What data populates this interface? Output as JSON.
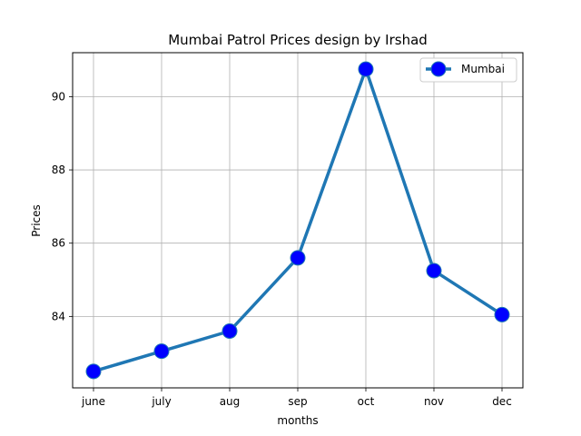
{
  "chart_data": {
    "type": "line",
    "title": "Mumbai Patrol Prices design by Irshad",
    "xlabel": "months",
    "ylabel": "Prices",
    "categories": [
      "june",
      "july",
      "aug",
      "sep",
      "oct",
      "nov",
      "dec"
    ],
    "series": [
      {
        "name": "Mumbai",
        "values": [
          82.5,
          83.05,
          83.6,
          85.6,
          90.75,
          85.25,
          84.05
        ]
      }
    ],
    "ylim": [
      82.05,
      91.2
    ],
    "yticks": [
      84,
      86,
      88,
      90
    ],
    "grid": true,
    "legend_position": "top-right",
    "colors": {
      "line": "#1f77b4",
      "marker_fill": "#0000ff",
      "grid": "#b0b0b0"
    }
  }
}
